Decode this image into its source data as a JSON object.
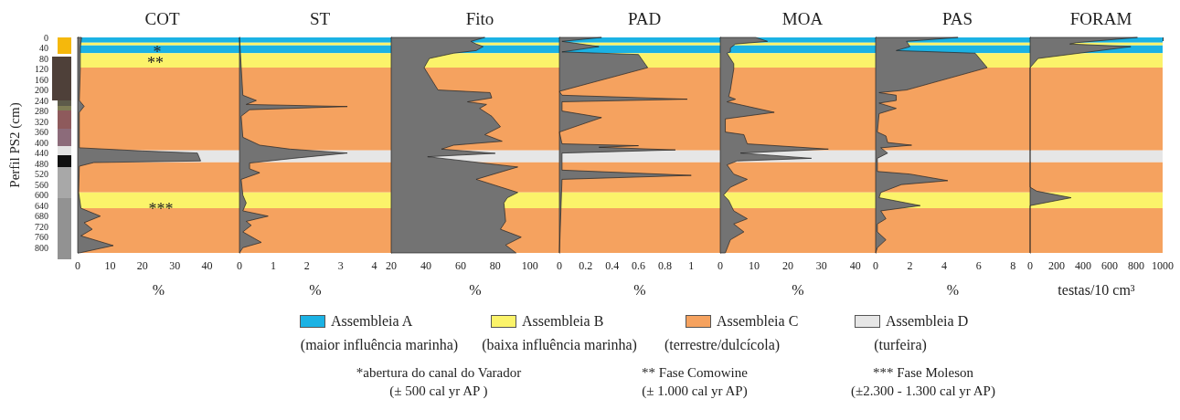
{
  "chart_data": [
    {
      "type": "area",
      "title": "COT",
      "xlabel": "%",
      "ylabel": "Perfil PS2 (cm)",
      "orientation": "horizontal",
      "xlim": [
        0,
        50
      ],
      "xticks": [
        0,
        10,
        20,
        30,
        40
      ],
      "ylim": [
        820,
        0
      ],
      "yticks": [
        0,
        40,
        80,
        120,
        160,
        200,
        240,
        280,
        320,
        360,
        400,
        440,
        480,
        520,
        560,
        600,
        640,
        680,
        720,
        760,
        800
      ],
      "x": [
        0,
        40,
        120,
        240,
        262,
        285,
        420,
        432,
        440,
        470,
        476,
        490,
        590,
        650,
        680,
        705,
        730,
        755,
        792,
        820
      ],
      "series": [
        {
          "color": "#737373",
          "values": [
            1.2,
            0.8,
            0.8,
            0.5,
            2,
            0.5,
            0.5,
            20,
            37,
            38,
            5,
            0.5,
            0.3,
            1,
            7,
            2,
            4.5,
            1,
            11,
            0.5
          ]
        }
      ],
      "bands": [
        {
          "axis": "y",
          "from": 0,
          "to": 20,
          "color": "#1bb2e4",
          "label": "Assembleia A"
        },
        {
          "axis": "y",
          "from": 20,
          "to": 30,
          "color": "#fbf36a"
        },
        {
          "axis": "y",
          "from": 30,
          "to": 60,
          "color": "#1bb2e4"
        },
        {
          "axis": "y",
          "from": 60,
          "to": 115,
          "color": "#fbf36a",
          "label": "Assembleia B"
        },
        {
          "axis": "y",
          "from": 115,
          "to": 430,
          "color": "#f5a25f",
          "label": "Assembleia C"
        },
        {
          "axis": "y",
          "from": 430,
          "to": 475,
          "color": "#e6e6e6",
          "label": "Assembleia D"
        },
        {
          "axis": "y",
          "from": 475,
          "to": 590,
          "color": "#f5a25f"
        },
        {
          "axis": "y",
          "from": 590,
          "to": 650,
          "color": "#fbf36a"
        },
        {
          "axis": "y",
          "from": 650,
          "to": 820,
          "color": "#f5a25f"
        }
      ],
      "legend": "bottom",
      "annotations": [
        "*",
        "**",
        "***",
        "(maior influência marinha)",
        "(baixa influência marinha)",
        "(terrestre/dulcícola)",
        "(turfeira)",
        "*abertura do canal do Varador\n(± 500 cal yr AP )",
        "** Fase Comowine\n(± 1.000 cal yr AP)",
        "*** Fase Moleson\n(±2.300 - 1.300 cal yr AP)"
      ]
    },
    {
      "type": "area",
      "title": "ST",
      "xlabel": "%",
      "orientation": "horizontal",
      "tick_labels": "x",
      "xlim": [
        0,
        4.5
      ],
      "xticks": [
        0,
        1,
        2,
        3,
        4
      ],
      "ylim": [
        820,
        0
      ],
      "yticks": [
        0,
        40,
        80,
        120,
        160,
        200,
        240,
        280,
        320,
        360,
        400,
        440,
        480,
        520,
        560,
        600,
        640,
        680,
        720,
        760,
        800
      ],
      "x": [
        0,
        220,
        240,
        255,
        263,
        275,
        300,
        380,
        410,
        425,
        440,
        460,
        478,
        500,
        515,
        540,
        600,
        630,
        660,
        680,
        700,
        715,
        740,
        780,
        800,
        820
      ],
      "series": [
        {
          "color": "#737373",
          "values": [
            0,
            0.1,
            0.5,
            0.2,
            3.2,
            0.3,
            0.05,
            0.1,
            0.6,
            1.5,
            3.2,
            1.6,
            0.3,
            0.3,
            0.6,
            0.05,
            0.1,
            0.2,
            0.1,
            0.85,
            0.2,
            0.35,
            0.1,
            0.65,
            0.1,
            0
          ]
        }
      ],
      "bands": [
        {
          "axis": "y",
          "from": 0,
          "to": 20,
          "color": "#1bb2e4"
        },
        {
          "axis": "y",
          "from": 20,
          "to": 30,
          "color": "#fbf36a"
        },
        {
          "axis": "y",
          "from": 30,
          "to": 60,
          "color": "#1bb2e4"
        },
        {
          "axis": "y",
          "from": 60,
          "to": 115,
          "color": "#fbf36a"
        },
        {
          "axis": "y",
          "from": 115,
          "to": 430,
          "color": "#f5a25f"
        },
        {
          "axis": "y",
          "from": 430,
          "to": 475,
          "color": "#e6e6e6"
        },
        {
          "axis": "y",
          "from": 475,
          "to": 590,
          "color": "#f5a25f"
        },
        {
          "axis": "y",
          "from": 590,
          "to": 650,
          "color": "#fbf36a"
        },
        {
          "axis": "y",
          "from": 650,
          "to": 820,
          "color": "#f5a25f"
        }
      ]
    },
    {
      "type": "area",
      "title": "Fito",
      "xlabel": "%",
      "orientation": "horizontal",
      "tick_labels": "x",
      "xlim": [
        20,
        117
      ],
      "xticks": [
        20,
        40,
        60,
        80,
        100
      ],
      "ylim": [
        820,
        0
      ],
      "yticks": [
        0,
        40,
        80,
        120,
        160,
        200,
        240,
        280,
        320,
        360,
        400,
        440,
        480,
        520,
        560,
        600,
        640,
        680,
        720,
        760,
        800
      ],
      "x": [
        0,
        15,
        25,
        35,
        50,
        60,
        80,
        115,
        200,
        210,
        230,
        245,
        255,
        270,
        300,
        340,
        370,
        395,
        410,
        425,
        441,
        454,
        493,
        540,
        590,
        610,
        630,
        700,
        730,
        760,
        790,
        820
      ],
      "series": [
        {
          "color": "#737373",
          "values": [
            74,
            66,
            69,
            73,
            69,
            56,
            42,
            39,
            47,
            77,
            78,
            64,
            75,
            71,
            78,
            83,
            74,
            84,
            56,
            49,
            80,
            41,
            93,
            69,
            93,
            87,
            85,
            86,
            83,
            95,
            86,
            92
          ]
        }
      ],
      "bands": [
        {
          "axis": "y",
          "from": 0,
          "to": 20,
          "color": "#1bb2e4"
        },
        {
          "axis": "y",
          "from": 20,
          "to": 30,
          "color": "#fbf36a"
        },
        {
          "axis": "y",
          "from": 30,
          "to": 60,
          "color": "#1bb2e4"
        },
        {
          "axis": "y",
          "from": 60,
          "to": 115,
          "color": "#fbf36a"
        },
        {
          "axis": "y",
          "from": 115,
          "to": 430,
          "color": "#f5a25f"
        },
        {
          "axis": "y",
          "from": 430,
          "to": 475,
          "color": "#e6e6e6"
        },
        {
          "axis": "y",
          "from": 475,
          "to": 590,
          "color": "#f5a25f"
        },
        {
          "axis": "y",
          "from": 590,
          "to": 650,
          "color": "#fbf36a"
        },
        {
          "axis": "y",
          "from": 650,
          "to": 820,
          "color": "#f5a25f"
        }
      ]
    },
    {
      "type": "area",
      "title": "PAD",
      "xlabel": "%",
      "orientation": "horizontal",
      "tick_labels": "x",
      "xlim": [
        0,
        1.22
      ],
      "xticks": [
        0,
        0.2,
        0.4,
        0.6,
        0.8,
        1
      ],
      "ylim": [
        820,
        0
      ],
      "yticks": [
        0,
        40,
        80,
        120,
        160,
        200,
        240,
        280,
        320,
        360,
        400,
        440,
        480,
        520,
        560,
        600,
        640,
        680,
        720,
        760,
        800
      ],
      "x": [
        0,
        15,
        35,
        55,
        65,
        115,
        205,
        220,
        235,
        245,
        280,
        305,
        360,
        405,
        412,
        418,
        428,
        440,
        505,
        525,
        540,
        820
      ],
      "series": [
        {
          "color": "#737373",
          "values": [
            0.32,
            0.02,
            0.3,
            0.02,
            0.6,
            0.67,
            0,
            0.02,
            0.97,
            0.02,
            0.02,
            0.32,
            0,
            0.02,
            0.6,
            0.3,
            0.88,
            0.02,
            0.02,
            1.0,
            0.02,
            0
          ]
        }
      ],
      "bands": [
        {
          "axis": "y",
          "from": 0,
          "to": 20,
          "color": "#1bb2e4"
        },
        {
          "axis": "y",
          "from": 20,
          "to": 30,
          "color": "#fbf36a"
        },
        {
          "axis": "y",
          "from": 30,
          "to": 60,
          "color": "#1bb2e4"
        },
        {
          "axis": "y",
          "from": 60,
          "to": 115,
          "color": "#fbf36a"
        },
        {
          "axis": "y",
          "from": 115,
          "to": 430,
          "color": "#f5a25f"
        },
        {
          "axis": "y",
          "from": 430,
          "to": 475,
          "color": "#e6e6e6"
        },
        {
          "axis": "y",
          "from": 475,
          "to": 590,
          "color": "#f5a25f"
        },
        {
          "axis": "y",
          "from": 590,
          "to": 650,
          "color": "#fbf36a"
        },
        {
          "axis": "y",
          "from": 650,
          "to": 820,
          "color": "#f5a25f"
        }
      ]
    },
    {
      "type": "area",
      "title": "MOA",
      "xlabel": "%",
      "orientation": "horizontal",
      "tick_labels": "x",
      "xlim": [
        0,
        46
      ],
      "xticks": [
        0,
        10,
        20,
        30,
        40
      ],
      "ylim": [
        820,
        0
      ],
      "yticks": [
        0,
        40,
        80,
        120,
        160,
        200,
        240,
        280,
        320,
        360,
        400,
        440,
        480,
        520,
        560,
        600,
        640,
        680,
        720,
        760,
        800
      ],
      "x": [
        0,
        15,
        25,
        40,
        55,
        60,
        100,
        120,
        200,
        225,
        235,
        245,
        285,
        310,
        360,
        370,
        405,
        425,
        440,
        460,
        470,
        485,
        520,
        540,
        570,
        600,
        620,
        660,
        690,
        710,
        740,
        770,
        820
      ],
      "series": [
        {
          "color": "#737373",
          "values": [
            10.5,
            14,
            4.5,
            3,
            3,
            2,
            4,
            4,
            3,
            2.5,
            4.5,
            2,
            16,
            1.5,
            1.5,
            7,
            8,
            32,
            6,
            27,
            5,
            2,
            4,
            8,
            3,
            1,
            2.5,
            4,
            8,
            4,
            7,
            3,
            1.5
          ]
        }
      ],
      "bands": [
        {
          "axis": "y",
          "from": 0,
          "to": 20,
          "color": "#1bb2e4"
        },
        {
          "axis": "y",
          "from": 20,
          "to": 30,
          "color": "#fbf36a"
        },
        {
          "axis": "y",
          "from": 30,
          "to": 60,
          "color": "#1bb2e4"
        },
        {
          "axis": "y",
          "from": 60,
          "to": 115,
          "color": "#fbf36a"
        },
        {
          "axis": "y",
          "from": 115,
          "to": 430,
          "color": "#f5a25f"
        },
        {
          "axis": "y",
          "from": 430,
          "to": 475,
          "color": "#e6e6e6"
        },
        {
          "axis": "y",
          "from": 475,
          "to": 590,
          "color": "#f5a25f"
        },
        {
          "axis": "y",
          "from": 590,
          "to": 650,
          "color": "#fbf36a"
        },
        {
          "axis": "y",
          "from": 650,
          "to": 820,
          "color": "#f5a25f"
        }
      ]
    },
    {
      "type": "area",
      "title": "PAS",
      "xlabel": "%",
      "orientation": "horizontal",
      "tick_labels": "x",
      "xlim": [
        0,
        9
      ],
      "xticks": [
        0,
        2,
        4,
        6,
        8
      ],
      "ylim": [
        820,
        0
      ],
      "yticks": [
        0,
        40,
        80,
        120,
        160,
        200,
        240,
        280,
        320,
        360,
        400,
        440,
        480,
        520,
        560,
        600,
        640,
        680,
        720,
        760,
        800
      ],
      "x": [
        0,
        15,
        35,
        50,
        60,
        115,
        200,
        210,
        220,
        240,
        250,
        270,
        290,
        360,
        375,
        400,
        410,
        420,
        440,
        460,
        510,
        520,
        545,
        560,
        590,
        610,
        640,
        660,
        690,
        710,
        740,
        770,
        800,
        820
      ],
      "series": [
        {
          "color": "#737373",
          "values": [
            4.8,
            1.8,
            2,
            1.2,
            5.8,
            6.5,
            1.8,
            0.2,
            1.2,
            1.2,
            0.2,
            1.2,
            0.2,
            0.1,
            0.6,
            0.7,
            2.1,
            0.3,
            0.7,
            0.1,
            0.1,
            2,
            4.2,
            1.5,
            0.3,
            0.2,
            2.6,
            0.3,
            0.6,
            0.1,
            0.1,
            0.6,
            0.1,
            0
          ]
        }
      ],
      "bands": [
        {
          "axis": "y",
          "from": 0,
          "to": 20,
          "color": "#1bb2e4"
        },
        {
          "axis": "y",
          "from": 20,
          "to": 30,
          "color": "#fbf36a"
        },
        {
          "axis": "y",
          "from": 30,
          "to": 60,
          "color": "#1bb2e4"
        },
        {
          "axis": "y",
          "from": 60,
          "to": 115,
          "color": "#fbf36a"
        },
        {
          "axis": "y",
          "from": 115,
          "to": 430,
          "color": "#f5a25f"
        },
        {
          "axis": "y",
          "from": 430,
          "to": 475,
          "color": "#e6e6e6"
        },
        {
          "axis": "y",
          "from": 475,
          "to": 590,
          "color": "#f5a25f"
        },
        {
          "axis": "y",
          "from": 590,
          "to": 650,
          "color": "#fbf36a"
        },
        {
          "axis": "y",
          "from": 650,
          "to": 820,
          "color": "#f5a25f"
        }
      ]
    },
    {
      "type": "area",
      "title": "FORAM",
      "xlabel": "testas/10 cm³",
      "orientation": "horizontal",
      "tick_labels": "x",
      "xlim": [
        0,
        1000
      ],
      "xticks": [
        0,
        200,
        400,
        600,
        800,
        1000
      ],
      "ylim": [
        820,
        0
      ],
      "yticks": [
        0,
        40,
        80,
        120,
        160,
        200,
        240,
        280,
        320,
        360,
        400,
        440,
        480,
        520,
        560,
        600,
        640,
        680,
        720,
        760,
        800
      ],
      "x": [
        0,
        20,
        25,
        35,
        80,
        115,
        570,
        585,
        610,
        640,
        820
      ],
      "series": [
        {
          "color": "#737373",
          "values": [
            810,
            350,
            300,
            760,
            60,
            0,
            0,
            50,
            310,
            0,
            0
          ]
        }
      ],
      "bands": [
        {
          "axis": "y",
          "from": 0,
          "to": 20,
          "color": "#1bb2e4"
        },
        {
          "axis": "y",
          "from": 20,
          "to": 30,
          "color": "#fbf36a"
        },
        {
          "axis": "y",
          "from": 30,
          "to": 60,
          "color": "#1bb2e4"
        },
        {
          "axis": "y",
          "from": 60,
          "to": 115,
          "color": "#fbf36a"
        },
        {
          "axis": "y",
          "from": 115,
          "to": 430,
          "color": "#f5a25f"
        },
        {
          "axis": "y",
          "from": 430,
          "to": 475,
          "color": "#e6e6e6"
        },
        {
          "axis": "y",
          "from": 475,
          "to": 590,
          "color": "#f5a25f"
        },
        {
          "axis": "y",
          "from": 590,
          "to": 650,
          "color": "#fbf36a"
        },
        {
          "axis": "y",
          "from": 650,
          "to": 820,
          "color": "#f5a25f"
        }
      ]
    }
  ]
}
